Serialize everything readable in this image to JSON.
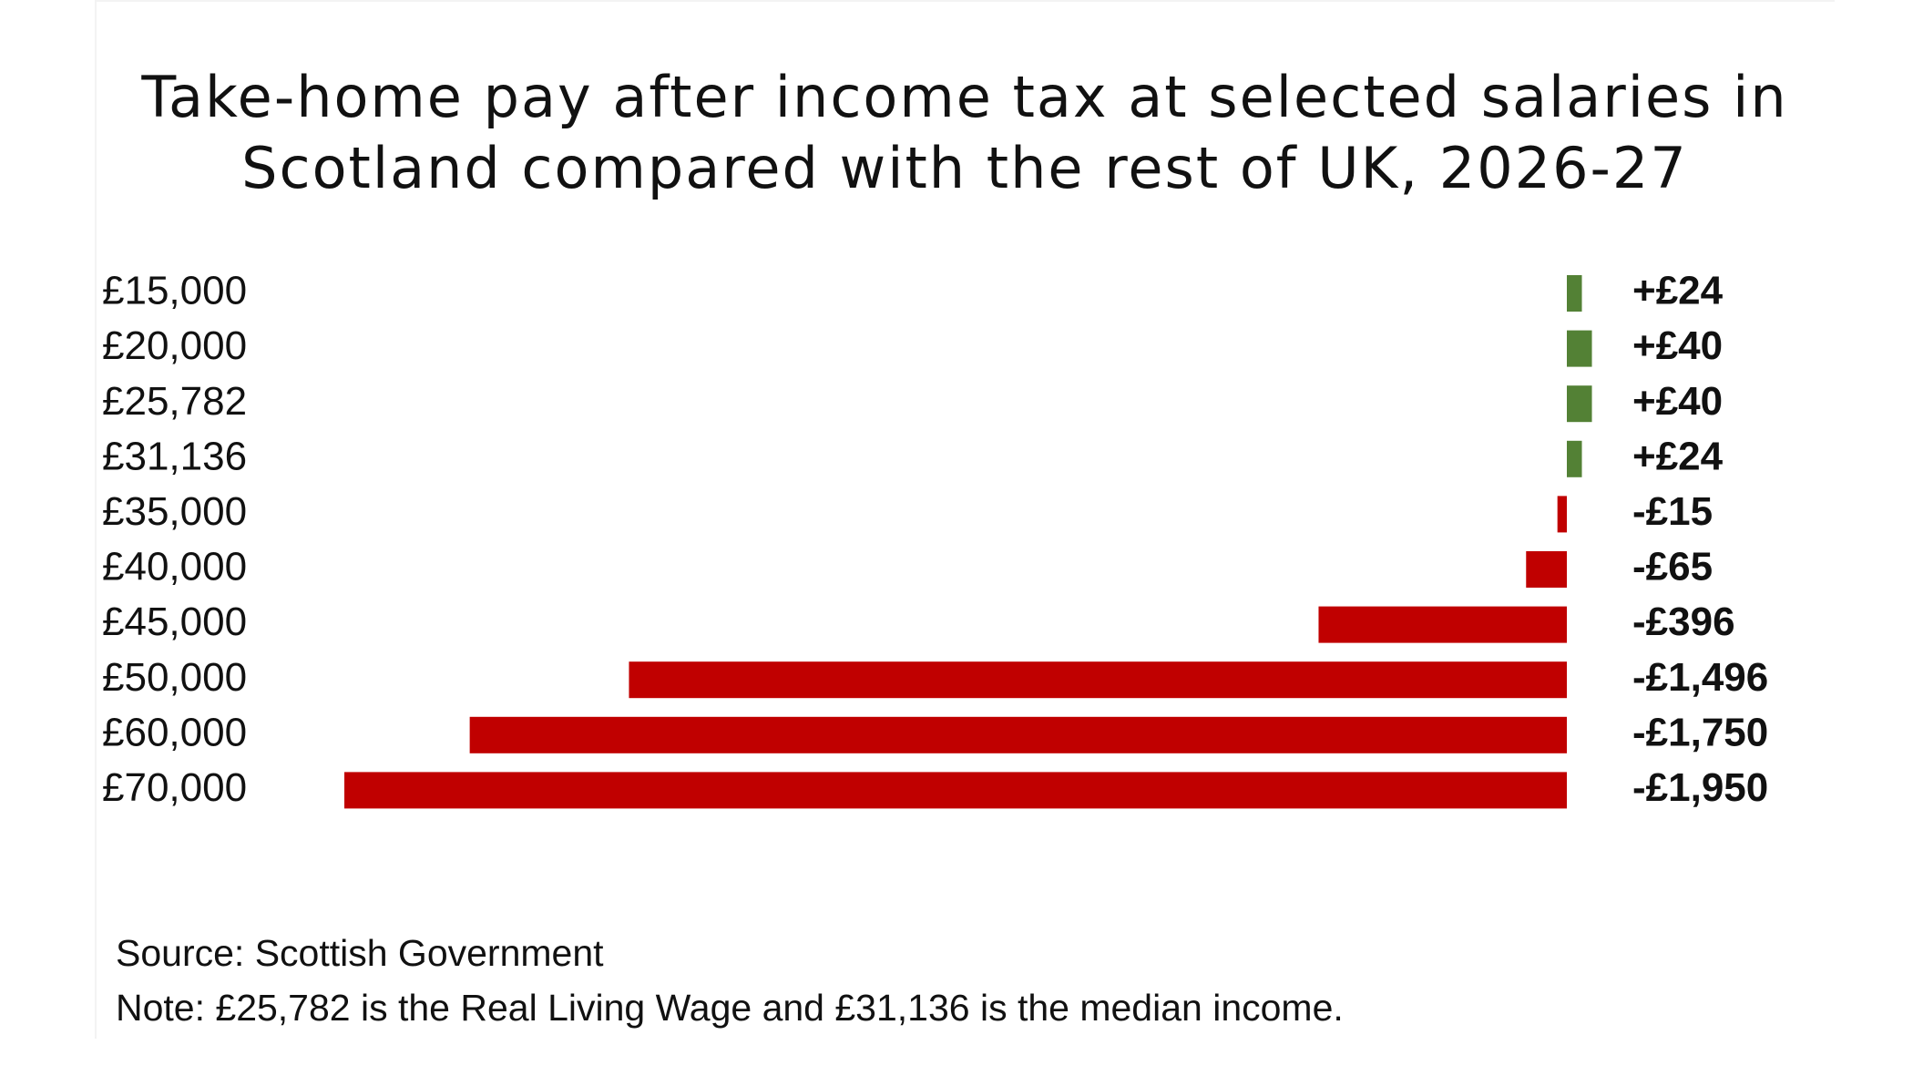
{
  "chart_data": {
    "type": "bar",
    "orientation": "horizontal",
    "title": "Take-home pay after income tax at selected salaries in Scotland compared with the rest of UK, 2026-27",
    "title_lines": [
      "Take-home pay after income tax at selected salaries in",
      "Scotland compared with the rest of UK, 2026-27"
    ],
    "categories": [
      "£15,000",
      "£20,000",
      "£25,782",
      "£31,136",
      "£35,000",
      "£40,000",
      "£45,000",
      "£50,000",
      "£60,000",
      "£70,000"
    ],
    "values": [
      24,
      40,
      40,
      24,
      -15,
      -65,
      -396,
      -1496,
      -1750,
      -1950
    ],
    "value_labels": [
      "+£24",
      "+£40",
      "+£40",
      "+£24",
      "-£15",
      "-£65",
      "-£396",
      "-£1,496",
      "-£1,750",
      "-£1,950"
    ],
    "colors": {
      "positive": "#538135",
      "negative": "#c00000"
    },
    "xlim": [
      -1950,
      75
    ],
    "grid": false,
    "legend": "none"
  },
  "footer": {
    "source": "Source: Scottish Government",
    "note": "Note: £25,782 is the Real Living Wage and £31,136 is the median income."
  }
}
